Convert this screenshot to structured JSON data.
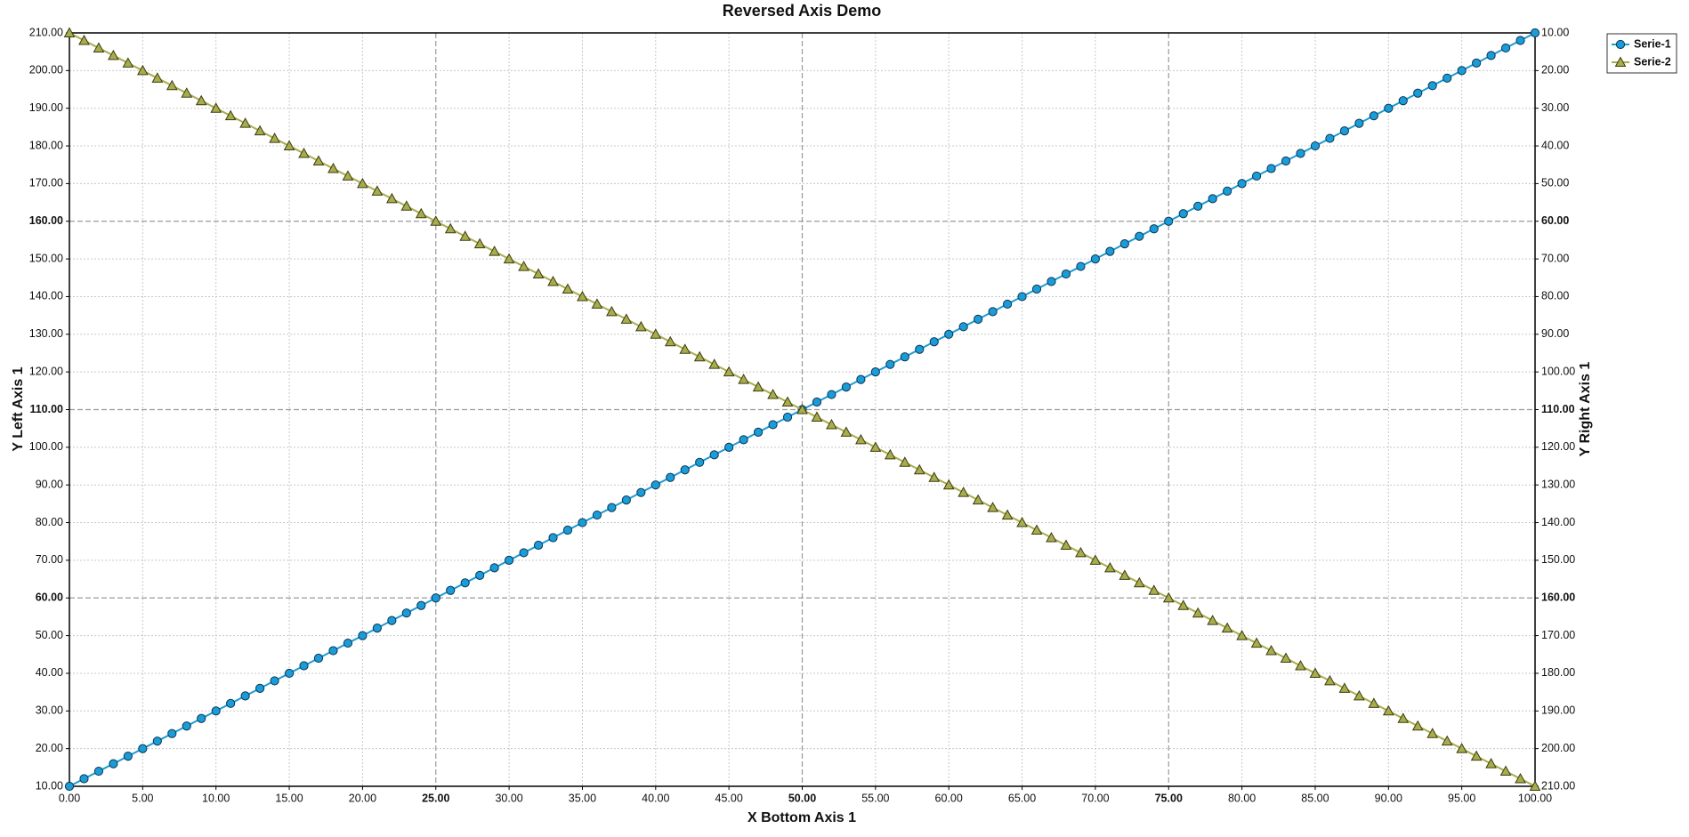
{
  "chart_data": {
    "type": "line",
    "title": "Reversed Axis Demo",
    "xlabel": "X Bottom Axis 1",
    "ylabel": "Y Left Axis 1",
    "y2label": "Y Right Axis 1",
    "x": [
      0,
      1,
      2,
      3,
      4,
      5,
      6,
      7,
      8,
      9,
      10,
      11,
      12,
      13,
      14,
      15,
      16,
      17,
      18,
      19,
      20,
      21,
      22,
      23,
      24,
      25,
      26,
      27,
      28,
      29,
      30,
      31,
      32,
      33,
      34,
      35,
      36,
      37,
      38,
      39,
      40,
      41,
      42,
      43,
      44,
      45,
      46,
      47,
      48,
      49,
      50,
      51,
      52,
      53,
      54,
      55,
      56,
      57,
      58,
      59,
      60,
      61,
      62,
      63,
      64,
      65,
      66,
      67,
      68,
      69,
      70,
      71,
      72,
      73,
      74,
      75,
      76,
      77,
      78,
      79,
      80,
      81,
      82,
      83,
      84,
      85,
      86,
      87,
      88,
      89,
      90,
      91,
      92,
      93,
      94,
      95,
      96,
      97,
      98,
      99,
      100
    ],
    "series": [
      {
        "name": "Serie-1",
        "color": "#1a9cd8",
        "marker": "circle",
        "values": [
          10,
          12,
          14,
          16,
          18,
          20,
          22,
          24,
          26,
          28,
          30,
          32,
          34,
          36,
          38,
          40,
          42,
          44,
          46,
          48,
          50,
          52,
          54,
          56,
          58,
          60,
          62,
          64,
          66,
          68,
          70,
          72,
          74,
          76,
          78,
          80,
          82,
          84,
          86,
          88,
          90,
          92,
          94,
          96,
          98,
          100,
          102,
          104,
          106,
          108,
          110,
          112,
          114,
          116,
          118,
          120,
          122,
          124,
          126,
          128,
          130,
          132,
          134,
          136,
          138,
          140,
          142,
          144,
          146,
          148,
          150,
          152,
          154,
          156,
          158,
          160,
          162,
          164,
          166,
          168,
          170,
          172,
          174,
          176,
          178,
          180,
          182,
          184,
          186,
          188,
          190,
          192,
          194,
          196,
          198,
          200,
          202,
          204,
          206,
          208,
          210
        ]
      },
      {
        "name": "Serie-2",
        "color": "#a8ad4c",
        "marker": "triangle",
        "axis": "y2",
        "values": [
          10,
          12,
          14,
          16,
          18,
          20,
          22,
          24,
          26,
          28,
          30,
          32,
          34,
          36,
          38,
          40,
          42,
          44,
          46,
          48,
          50,
          52,
          54,
          56,
          58,
          60,
          62,
          64,
          66,
          68,
          70,
          72,
          74,
          76,
          78,
          80,
          82,
          84,
          86,
          88,
          90,
          92,
          94,
          96,
          98,
          100,
          102,
          104,
          106,
          108,
          110,
          112,
          114,
          116,
          118,
          120,
          122,
          124,
          126,
          128,
          130,
          132,
          134,
          136,
          138,
          140,
          142,
          144,
          146,
          148,
          150,
          152,
          154,
          156,
          158,
          160,
          162,
          164,
          166,
          168,
          170,
          172,
          174,
          176,
          178,
          180,
          182,
          184,
          186,
          188,
          190,
          192,
          194,
          196,
          198,
          200,
          202,
          204,
          206,
          208,
          210
        ]
      }
    ],
    "xlim": [
      0,
      100
    ],
    "ylim": [
      10,
      210
    ],
    "y2lim": [
      10,
      210
    ],
    "y2_reversed": true,
    "xticks": [
      {
        "value": 0,
        "label": "0.00"
      },
      {
        "value": 5,
        "label": "5.00"
      },
      {
        "value": 10,
        "label": "10.00"
      },
      {
        "value": 15,
        "label": "15.00"
      },
      {
        "value": 20,
        "label": "20.00"
      },
      {
        "value": 25,
        "label": "25.00"
      },
      {
        "value": 30,
        "label": "30.00"
      },
      {
        "value": 35,
        "label": "35.00"
      },
      {
        "value": 40,
        "label": "40.00"
      },
      {
        "value": 45,
        "label": "45.00"
      },
      {
        "value": 50,
        "label": "50.00"
      },
      {
        "value": 55,
        "label": "55.00"
      },
      {
        "value": 60,
        "label": "60.00"
      },
      {
        "value": 65,
        "label": "65.00"
      },
      {
        "value": 70,
        "label": "70.00"
      },
      {
        "value": 75,
        "label": "75.00"
      },
      {
        "value": 80,
        "label": "80.00"
      },
      {
        "value": 85,
        "label": "85.00"
      },
      {
        "value": 90,
        "label": "90.00"
      },
      {
        "value": 95,
        "label": "95.00"
      },
      {
        "value": 100,
        "label": "100.00"
      }
    ],
    "yticks": [
      {
        "value": 10,
        "label": "10.00"
      },
      {
        "value": 20,
        "label": "20.00"
      },
      {
        "value": 30,
        "label": "30.00"
      },
      {
        "value": 40,
        "label": "40.00"
      },
      {
        "value": 50,
        "label": "50.00"
      },
      {
        "value": 60,
        "label": "60.00"
      },
      {
        "value": 70,
        "label": "70.00"
      },
      {
        "value": 80,
        "label": "80.00"
      },
      {
        "value": 90,
        "label": "90.00"
      },
      {
        "value": 100,
        "label": "100.00"
      },
      {
        "value": 110,
        "label": "110.00"
      },
      {
        "value": 120,
        "label": "120.00"
      },
      {
        "value": 130,
        "label": "130.00"
      },
      {
        "value": 140,
        "label": "140.00"
      },
      {
        "value": 150,
        "label": "150.00"
      },
      {
        "value": 160,
        "label": "160.00"
      },
      {
        "value": 170,
        "label": "170.00"
      },
      {
        "value": 180,
        "label": "180.00"
      },
      {
        "value": 190,
        "label": "190.00"
      },
      {
        "value": 200,
        "label": "200.00"
      },
      {
        "value": 210,
        "label": "210.00"
      }
    ],
    "y2ticks": [
      {
        "value": 10,
        "label": "10.00"
      },
      {
        "value": 20,
        "label": "20.00"
      },
      {
        "value": 30,
        "label": "30.00"
      },
      {
        "value": 40,
        "label": "40.00"
      },
      {
        "value": 50,
        "label": "50.00"
      },
      {
        "value": 60,
        "label": "60.00"
      },
      {
        "value": 70,
        "label": "70.00"
      },
      {
        "value": 80,
        "label": "80.00"
      },
      {
        "value": 90,
        "label": "90.00"
      },
      {
        "value": 100,
        "label": "100.00"
      },
      {
        "value": 110,
        "label": "110.00"
      },
      {
        "value": 120,
        "label": "120.00"
      },
      {
        "value": 130,
        "label": "130.00"
      },
      {
        "value": 140,
        "label": "140.00"
      },
      {
        "value": 150,
        "label": "150.00"
      },
      {
        "value": 160,
        "label": "160.00"
      },
      {
        "value": 170,
        "label": "170.00"
      },
      {
        "value": 180,
        "label": "180.00"
      },
      {
        "value": 190,
        "label": "190.00"
      },
      {
        "value": 200,
        "label": "200.00"
      },
      {
        "value": 210,
        "label": "210.00"
      }
    ],
    "grid": true,
    "legend": "top-right"
  }
}
